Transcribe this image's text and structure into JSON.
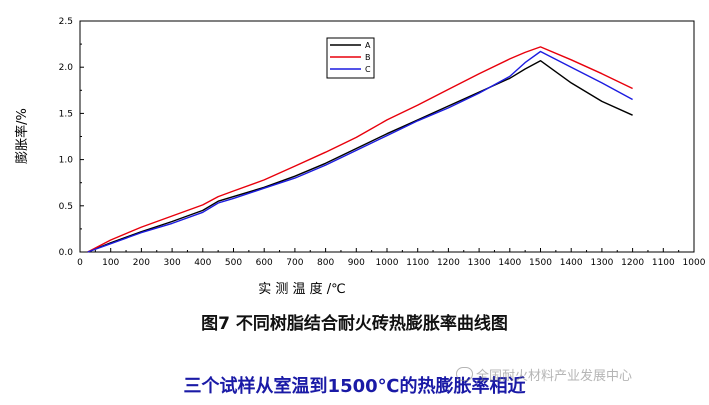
{
  "chart_data": {
    "type": "line",
    "xlabel": "实 测 温 度 /℃",
    "ylabel": "膨胀率/%",
    "x_tick_labels": [
      "0",
      "100",
      "200",
      "300",
      "400",
      "500",
      "600",
      "700",
      "800",
      "900",
      "1000",
      "1100",
      "1200",
      "1300",
      "1400",
      "1500",
      "1400",
      "1300",
      "1200",
      "1100",
      "1000"
    ],
    "y_ticks": [
      0.0,
      0.5,
      1.0,
      1.5,
      2.0,
      2.5
    ],
    "y_tick_labels": [
      "0.0",
      "0.5",
      "1.0",
      "1.5",
      "2.0",
      "2.5"
    ],
    "ylim": [
      0,
      2.5
    ],
    "grid": false,
    "legend_position": "top-center",
    "series": [
      {
        "name": "A",
        "color": "#000000",
        "heating": {
          "x": [
            25,
            100,
            200,
            300,
            400,
            450,
            500,
            600,
            700,
            800,
            900,
            1000,
            1100,
            1200,
            1300,
            1400,
            1450,
            1500
          ],
          "y": [
            0.0,
            0.1,
            0.22,
            0.33,
            0.45,
            0.55,
            0.6,
            0.7,
            0.82,
            0.96,
            1.12,
            1.28,
            1.43,
            1.58,
            1.73,
            1.88,
            1.98,
            2.07
          ]
        },
        "cooling": {
          "x": [
            1500,
            1400,
            1300,
            1200
          ],
          "y": [
            2.07,
            1.83,
            1.63,
            1.48
          ]
        }
      },
      {
        "name": "B",
        "color": "#e8000c",
        "heating": {
          "x": [
            25,
            100,
            200,
            300,
            400,
            450,
            500,
            600,
            700,
            800,
            900,
            1000,
            1100,
            1200,
            1300,
            1400,
            1450,
            1500
          ],
          "y": [
            0.0,
            0.13,
            0.27,
            0.39,
            0.51,
            0.6,
            0.66,
            0.78,
            0.93,
            1.08,
            1.24,
            1.43,
            1.59,
            1.76,
            1.93,
            2.09,
            2.16,
            2.22
          ]
        },
        "cooling": {
          "x": [
            1500,
            1400,
            1300,
            1200
          ],
          "y": [
            2.22,
            2.08,
            1.93,
            1.77
          ]
        }
      },
      {
        "name": "C",
        "color": "#1c1ce0",
        "heating": {
          "x": [
            25,
            100,
            200,
            300,
            400,
            450,
            500,
            600,
            700,
            800,
            900,
            1000,
            1100,
            1200,
            1300,
            1400,
            1450,
            1500
          ],
          "y": [
            0.0,
            0.09,
            0.21,
            0.31,
            0.43,
            0.53,
            0.58,
            0.69,
            0.8,
            0.94,
            1.1,
            1.26,
            1.42,
            1.56,
            1.72,
            1.9,
            2.05,
            2.17
          ]
        },
        "cooling": {
          "x": [
            1500,
            1400,
            1300,
            1200
          ],
          "y": [
            2.17,
            2.0,
            1.83,
            1.65
          ]
        }
      }
    ]
  },
  "figure_title": "图7 不同树脂结合耐火砖热膨胀率曲线图",
  "caption": "三个试样从室温到1500℃的热膨胀率相近",
  "watermark": "全国耐火材料产业发展中心"
}
